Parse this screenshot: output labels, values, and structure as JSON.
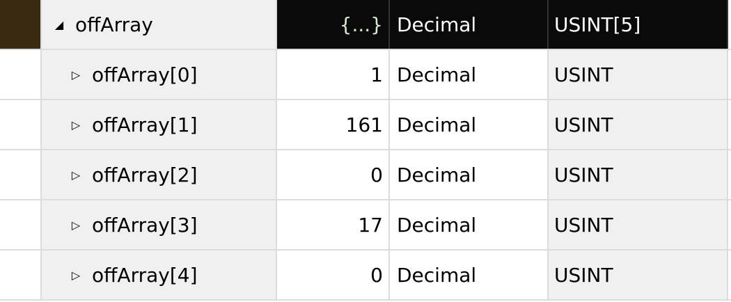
{
  "parent": {
    "name": "offArray",
    "value": "{...}",
    "style": "Decimal",
    "type": "USINT[5]",
    "expanded": true
  },
  "rows": [
    {
      "name": "offArray[0]",
      "value": "1",
      "style": "Decimal",
      "type": "USINT"
    },
    {
      "name": "offArray[1]",
      "value": "161",
      "style": "Decimal",
      "type": "USINT"
    },
    {
      "name": "offArray[2]",
      "value": "0",
      "style": "Decimal",
      "type": "USINT"
    },
    {
      "name": "offArray[3]",
      "value": "17",
      "style": "Decimal",
      "type": "USINT"
    },
    {
      "name": "offArray[4]",
      "value": "0",
      "style": "Decimal",
      "type": "USINT"
    }
  ],
  "icons": {
    "expanded": "triangle-down-right",
    "collapsed": "triangle-right-outline"
  }
}
